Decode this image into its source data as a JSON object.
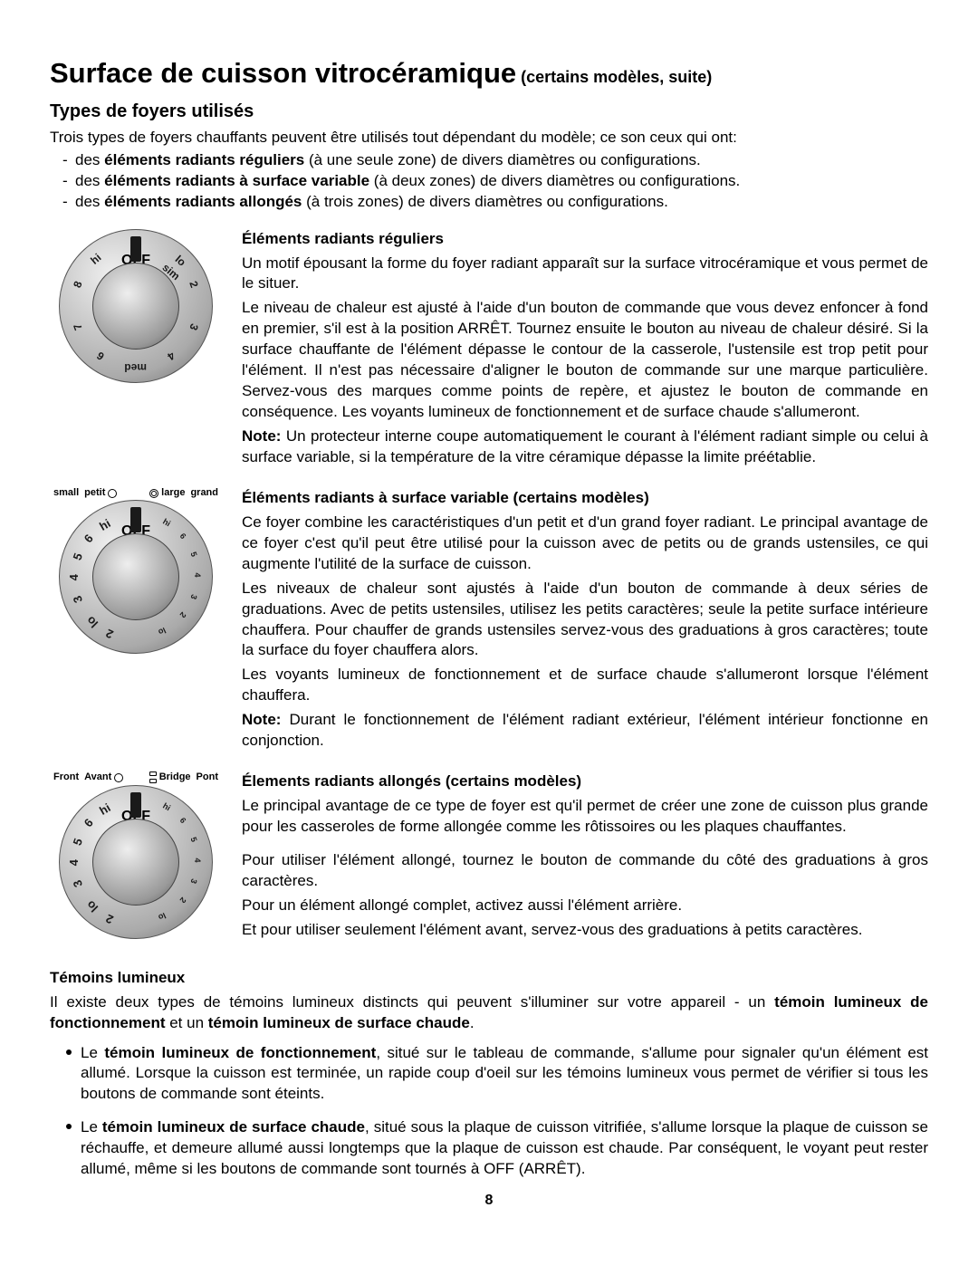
{
  "colors": {
    "text": "#000000",
    "page_bg": "#ffffff",
    "knob_hi": "#f0f0f0",
    "knob_lo": "#666666"
  },
  "typography": {
    "body_pt": 13,
    "h1_pt": 23,
    "h2_pt": 15,
    "family": "Arial"
  },
  "title": "Surface de cuisson vitrocéramique",
  "title_suffix": " (certains modèles, suite)",
  "subtitle": "Types de foyers utilisés",
  "intro": "Trois types de foyers chauffants peuvent être utilisés tout dépendant du modèle; ce son ceux qui ont:",
  "intro_items": [
    {
      "prefix": "des ",
      "bold": "éléments radiants réguliers",
      "suffix": " (à une seule zone) de divers diamètres ou configurations."
    },
    {
      "prefix": "des ",
      "bold": "éléments radiants à surface variable",
      "suffix": " (à deux zones) de divers diamètres ou configurations."
    },
    {
      "prefix": "des ",
      "bold": "éléments radiants allongés",
      "suffix": " (à trois zones) de divers diamètres ou configurations."
    }
  ],
  "sections": {
    "regular": {
      "heading": "Éléments radiants réguliers",
      "p1": "Un motif épousant la forme du foyer radiant apparaît sur la surface vitrocéramique et vous permet de le situer.",
      "p2": "Le niveau de chaleur est ajusté à l'aide d'un bouton de commande que vous devez enfoncer à fond en premier, s'il est à la position ARRÊT. Tournez ensuite le bouton au niveau de chaleur désiré. Si la surface chauffante de l'élément dépasse le contour de la casserole, l'ustensile est trop petit pour l'élément. Il n'est pas nécessaire d'aligner le bouton de commande sur une marque particulière. Servez-vous des marques comme points de repère, et ajustez le bouton de commande en conséquence. Les voyants lumineux de fonctionnement et de surface chaude s'allumeront.",
      "note_label": "Note:",
      "note": " Un protecteur interne coupe automatiquement le courant à l'élément radiant simple ou celui à surface variable, si la température de la vitre céramique dépasse la limite préétablie.",
      "knob": {
        "off": "OFF",
        "ticks": [
          {
            "angle": 40,
            "text": "lo sim"
          },
          {
            "angle": 70,
            "text": "2"
          },
          {
            "angle": 110,
            "text": "3"
          },
          {
            "angle": 145,
            "text": "4"
          },
          {
            "angle": 180,
            "text": "med"
          },
          {
            "angle": 215,
            "text": "6"
          },
          {
            "angle": 250,
            "text": "7"
          },
          {
            "angle": 290,
            "text": "8"
          },
          {
            "angle": 320,
            "text": "hi"
          }
        ]
      }
    },
    "variable": {
      "heading": "Éléments radiants à surface variable (certains modèles)",
      "p1": "Ce foyer combine les caractéristiques d'un petit et d'un grand foyer radiant. Le principal avantage de ce foyer c'est qu'il peut être utilisé pour la cuisson avec de petits ou de grands ustensiles, ce qui augmente l'utilité de la surface de cuisson.",
      "p2": "Les niveaux de chaleur sont ajustés à l'aide d'un bouton de commande à deux séries de graduations. Avec de petits ustensiles, utilisez les petits caractères; seule la petite surface intérieure chauffera. Pour chauffer de grands ustensiles servez-vous des graduations à gros caractères; toute la surface du foyer chauffera alors.",
      "p3": "Les voyants lumineux de fonctionnement et de surface chaude s'allumeront lorsque l'élément chauffera.",
      "note_label": "Note:",
      "note": " Durant le fonctionnement de l'élément radiant extérieur, l'élément intérieur fonctionne en conjonction.",
      "left_label_1": "small",
      "left_label_2": "petit",
      "right_label_1": "large",
      "right_label_2": "grand",
      "knob": {
        "off": "OFF",
        "ticks_large": [
          {
            "angle": 205,
            "text": "2"
          },
          {
            "angle": 225,
            "text": "lo"
          },
          {
            "angle": 250,
            "text": "3"
          },
          {
            "angle": 270,
            "text": "4"
          },
          {
            "angle": 290,
            "text": "5"
          },
          {
            "angle": 310,
            "text": "6"
          },
          {
            "angle": 330,
            "text": "hi"
          }
        ],
        "ticks_small": [
          {
            "angle": 30,
            "text": "hi"
          },
          {
            "angle": 50,
            "text": "6"
          },
          {
            "angle": 70,
            "text": "5"
          },
          {
            "angle": 90,
            "text": "4"
          },
          {
            "angle": 110,
            "text": "3"
          },
          {
            "angle": 130,
            "text": "2"
          },
          {
            "angle": 155,
            "text": "lo"
          }
        ]
      }
    },
    "bridge": {
      "heading": "Élements radiants allongés (certains modèles)",
      "p1": "Le principal avantage de ce type de foyer est qu'il permet de créer une zone de cuisson plus grande pour les casseroles de forme allongée comme les rôtissoires ou les plaques chauffantes.",
      "p2": "Pour utiliser l'élément allongé, tournez le bouton de commande du côté des graduations à gros caractères.",
      "p3": "Pour un élément allongé complet, activez aussi l'élément arrière.",
      "p4": "Et pour utiliser seulement l'élément avant, servez-vous des graduations à petits caractères.",
      "left_label_1": "Front",
      "left_label_2": "Avant",
      "right_label_1": "Bridge",
      "right_label_2": "Pont",
      "knob": {
        "off": "OFF",
        "ticks_large": [
          {
            "angle": 205,
            "text": "2"
          },
          {
            "angle": 225,
            "text": "lo"
          },
          {
            "angle": 250,
            "text": "3"
          },
          {
            "angle": 270,
            "text": "4"
          },
          {
            "angle": 290,
            "text": "5"
          },
          {
            "angle": 310,
            "text": "6"
          },
          {
            "angle": 330,
            "text": "hi"
          }
        ],
        "ticks_small": [
          {
            "angle": 30,
            "text": "hi"
          },
          {
            "angle": 50,
            "text": "6"
          },
          {
            "angle": 70,
            "text": "5"
          },
          {
            "angle": 90,
            "text": "4"
          },
          {
            "angle": 110,
            "text": "3"
          },
          {
            "angle": 130,
            "text": "2"
          },
          {
            "angle": 155,
            "text": "lo"
          }
        ]
      }
    }
  },
  "temoin": {
    "heading": "Témoins lumineux",
    "intro_pre": "Il existe deux types de témoins lumineux distincts qui peuvent s'illuminer sur votre appareil - un ",
    "intro_b1": "témoin lumineux de fonctionnement",
    "intro_mid": " et un ",
    "intro_b2": "témoin lumineux de surface chaude",
    "intro_post": ".",
    "bullets": [
      {
        "pre": "Le ",
        "bold": "témoin lumineux de fonctionnement",
        "post": ", situé sur le tableau de commande, s'allume pour signaler qu'un élément est allumé. Lorsque la cuisson est terminée, un rapide coup d'oeil sur les témoins lumineux vous permet de vérifier si tous les boutons de commande sont éteints."
      },
      {
        "pre": "Le ",
        "bold": "témoin lumineux de surface chaude",
        "post": ", situé sous la plaque de cuisson vitrifiée, s'allume lorsque la plaque de cuisson se réchauffe, et demeure allumé aussi longtemps que la plaque de cuisson est chaude. Par conséquent, le voyant peut rester allumé, même si les boutons de commande sont tournés à OFF (ARRÊT)."
      }
    ]
  },
  "page_number": "8"
}
